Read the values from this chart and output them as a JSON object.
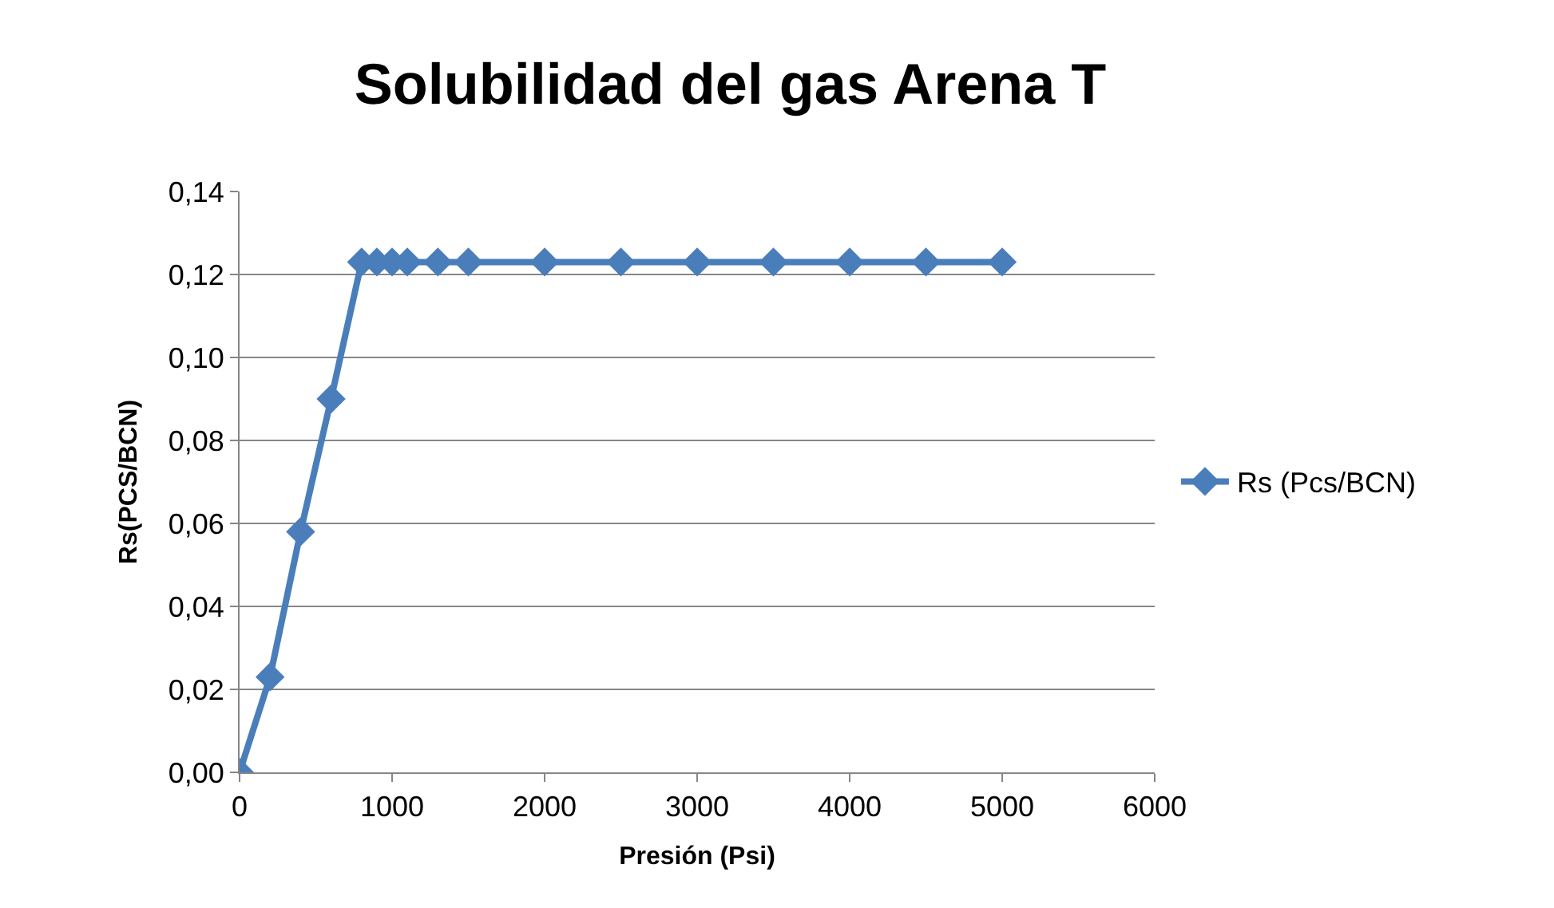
{
  "chart_data": {
    "type": "line",
    "title": "Solubilidad del gas Arena T",
    "xlabel": "Presión (Psi)",
    "ylabel": "Rs(PCS/BCN)",
    "x": [
      0,
      200,
      400,
      600,
      800,
      900,
      1000,
      1100,
      1300,
      1500,
      2000,
      2500,
      3000,
      3500,
      4000,
      4500,
      5000
    ],
    "series": [
      {
        "name": "Rs (Pcs/BCN)",
        "color": "#4a7ebb",
        "values": [
          0,
          0.023,
          0.058,
          0.09,
          0.123,
          0.123,
          0.123,
          0.123,
          0.123,
          0.123,
          0.123,
          0.123,
          0.123,
          0.123,
          0.123,
          0.123,
          0.123
        ]
      }
    ],
    "xlim": [
      0,
      6000
    ],
    "xticks": [
      0,
      1000,
      2000,
      3000,
      4000,
      5000,
      6000
    ],
    "ylim": [
      0,
      0.14
    ],
    "yticks": [
      {
        "value": 0,
        "label": "0,00"
      },
      {
        "value": 0.02,
        "label": "0,02"
      },
      {
        "value": 0.04,
        "label": "0,04"
      },
      {
        "value": 0.06,
        "label": "0,06"
      },
      {
        "value": 0.08,
        "label": "0,08"
      },
      {
        "value": 0.1,
        "label": "0,10"
      },
      {
        "value": 0.12,
        "label": "0,12"
      },
      {
        "value": 0.14,
        "label": "0,14"
      }
    ],
    "grid": "y",
    "legend": "right",
    "marker": "diamond",
    "line_style": "solid"
  }
}
